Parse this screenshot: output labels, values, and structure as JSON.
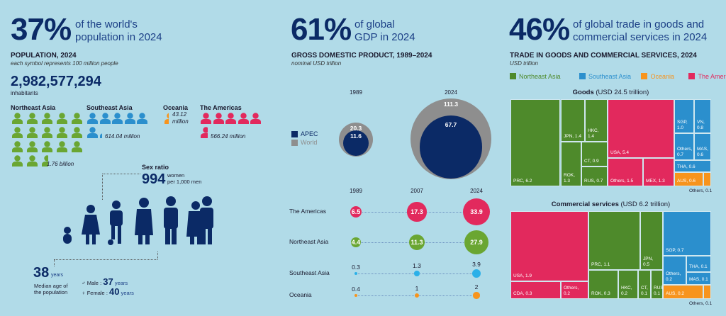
{
  "colors": {
    "navy": "#0b2a66",
    "northeast_asia": "#4e8a2b",
    "northeast_asia_light": "#6aa632",
    "southeast_asia": "#2b8fcd",
    "oceania": "#f7941d",
    "americas": "#e2295d",
    "world": "#8e8e8e",
    "background": "#b1dbe8"
  },
  "population": {
    "headline_pct": "37%",
    "headline_text_1": "of the world's",
    "headline_text_2": "population in 2024",
    "title": "POPULATION, 2024",
    "subtitle": "each symbol represents 100 million people",
    "total": "2,982,577,294",
    "total_label": "inhabitants",
    "regions": [
      {
        "name": "Northeast Asia",
        "value_millions": 1760,
        "label": "1.76 billion",
        "color": "#6aa632"
      },
      {
        "name": "Southeast Asia",
        "value_millions": 614.04,
        "label": "614.04 million",
        "color": "#2b8fcd"
      },
      {
        "name": "Oceania",
        "value_millions": 43.12,
        "label_1": "43.12",
        "label_2": "million",
        "color": "#f7941d"
      },
      {
        "name": "The Americas",
        "value_millions": 566.24,
        "label": "566.24 million",
        "color": "#e2295d"
      }
    ],
    "sex_ratio": {
      "label": "Sex ratio",
      "value": "994",
      "unit_1": "women",
      "unit_2": "per 1,000 men"
    },
    "median_age": {
      "value": "38",
      "unit": "years",
      "label_1": "Median age of",
      "label_2": "the population",
      "male_label": "Male",
      "male_value": "37",
      "female_label": "Female",
      "female_value": "40",
      "years": "years"
    }
  },
  "gdp": {
    "headline_pct": "61%",
    "headline_text_1": "of global",
    "headline_text_2": "GDP in 2024",
    "title": "GROSS DOMESTIC PRODUCT, 1989–2024",
    "subtitle": "nominal USD trillion"
  },
  "trade": {
    "headline_pct": "46%",
    "headline_text_1": "of global trade in goods and",
    "headline_text_2": "commercial services in 2024",
    "title": "TRADE IN GOODS AND COMMERCIAL SERVICES, 2024",
    "subtitle": "USD trillion",
    "legend": [
      {
        "name": "Northeast Asia",
        "color": "#4e8a2b"
      },
      {
        "name": "Southeast Asia",
        "color": "#2b8fcd"
      },
      {
        "name": "Oceania",
        "color": "#f7941d"
      },
      {
        "name": "The Americas",
        "color": "#e2295d"
      }
    ]
  },
  "chart_data": [
    {
      "type": "bubble",
      "legend": [
        "APEC",
        "World"
      ],
      "categories": [
        "1989",
        "2024"
      ],
      "series": [
        {
          "name": "World",
          "values": [
            20.3,
            111.3
          ],
          "color": "#8e8e8e"
        },
        {
          "name": "APEC",
          "values": [
            11.6,
            67.7
          ],
          "color": "#0b2a66"
        }
      ]
    },
    {
      "type": "dot-timeline",
      "x": [
        "1989",
        "2007",
        "2024"
      ],
      "series": [
        {
          "name": "The Americas",
          "values": [
            6.5,
            17.3,
            33.9
          ],
          "color": "#e2295d"
        },
        {
          "name": "Northeast Asia",
          "values": [
            4.4,
            11.3,
            27.9
          ],
          "color": "#6aa632"
        },
        {
          "name": "Southeast Asia",
          "values": [
            0.3,
            1.3,
            3.9
          ],
          "color": "#2bb0e8"
        },
        {
          "name": "Oceania",
          "values": [
            0.4,
            1.0,
            2.0
          ],
          "color": "#f7941d"
        }
      ]
    },
    {
      "type": "treemap",
      "title": "Goods",
      "title_suffix": "(USD 24.5 trillion)",
      "total": 24.5,
      "cells": [
        {
          "name": "PRC",
          "value": "6.2",
          "region": "Northeast Asia"
        },
        {
          "name": "JPN",
          "value": "1.4",
          "region": "Northeast Asia"
        },
        {
          "name": "HKC",
          "value": "1.4",
          "region": "Northeast Asia"
        },
        {
          "name": "ROK",
          "value": "1.3",
          "region": "Northeast Asia"
        },
        {
          "name": "CT",
          "value": "0.9",
          "region": "Northeast Asia"
        },
        {
          "name": "RUS",
          "value": "0.7",
          "region": "Northeast Asia"
        },
        {
          "name": "USA",
          "value": "5.4",
          "region": "The Americas"
        },
        {
          "name": "Others",
          "value": "1.5",
          "region": "The Americas"
        },
        {
          "name": "MEX",
          "value": "1.3",
          "region": "The Americas"
        },
        {
          "name": "SGP",
          "value": "1.0",
          "region": "Southeast Asia"
        },
        {
          "name": "VN",
          "value": "0.8",
          "region": "Southeast Asia"
        },
        {
          "name": "Others",
          "value": "0.7",
          "region": "Southeast Asia"
        },
        {
          "name": "MAS",
          "value": "0.6",
          "region": "Southeast Asia"
        },
        {
          "name": "THA",
          "value": "0.6",
          "region": "Southeast Asia"
        },
        {
          "name": "AUS",
          "value": "0.6",
          "region": "Oceania"
        },
        {
          "name": "Others",
          "value": "0.1",
          "region": "Oceania",
          "outside": true
        }
      ]
    },
    {
      "type": "treemap",
      "title": "Commercial services",
      "title_suffix": "(USD 6.2 trillion)",
      "total": 6.2,
      "cells": [
        {
          "name": "USA",
          "value": "1.9",
          "region": "The Americas"
        },
        {
          "name": "CDA",
          "value": "0.3",
          "region": "The Americas"
        },
        {
          "name": "Others",
          "value": "0.2",
          "region": "The Americas"
        },
        {
          "name": "PRC",
          "value": "1.1",
          "region": "Northeast Asia"
        },
        {
          "name": "JPN",
          "value": "0.5",
          "region": "Northeast Asia"
        },
        {
          "name": "ROK",
          "value": "0.3",
          "region": "Northeast Asia"
        },
        {
          "name": "HKC",
          "value": "0.2",
          "region": "Northeast Asia"
        },
        {
          "name": "CT",
          "value": "0.1",
          "region": "Northeast Asia"
        },
        {
          "name": "RUS",
          "value": "0.1",
          "region": "Northeast Asia"
        },
        {
          "name": "SGP",
          "value": "0.7",
          "region": "Southeast Asia"
        },
        {
          "name": "Others",
          "value": "0.2",
          "region": "Southeast Asia"
        },
        {
          "name": "THA",
          "value": "0.1",
          "region": "Southeast Asia"
        },
        {
          "name": "MAS",
          "value": "0.1",
          "region": "Southeast Asia"
        },
        {
          "name": "AUS",
          "value": "0.2",
          "region": "Oceania"
        },
        {
          "name": "Others",
          "value": "0.1",
          "region": "Oceania",
          "outside": true
        }
      ]
    }
  ]
}
